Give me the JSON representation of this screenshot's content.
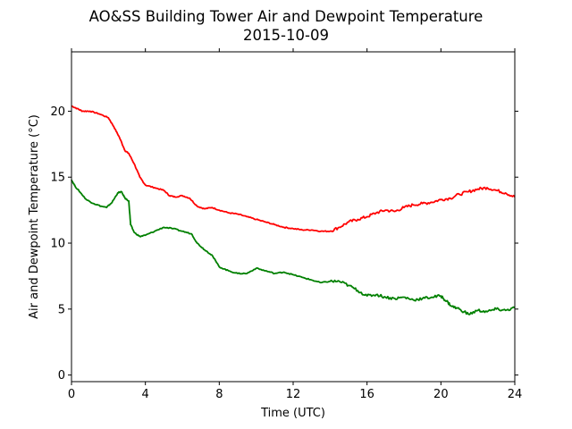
{
  "chart_data": {
    "type": "line",
    "title": "AO&SS Building Tower Air and Dewpoint Temperature",
    "subtitle": "2015-10-09",
    "xlabel": "Time (UTC)",
    "ylabel": "Air and Dewpoint Temperature (°C)",
    "xlim": [
      0,
      24
    ],
    "ylim": [
      -0.5,
      24.5
    ],
    "xticks": [
      0,
      4,
      8,
      12,
      16,
      20,
      24
    ],
    "yticks": [
      0,
      5,
      10,
      15,
      20
    ],
    "grid": false,
    "series": [
      {
        "key": "air",
        "color": "#ff0000",
        "x": [
          0,
          0.3,
          0.6,
          1.0,
          1.5,
          2.0,
          2.3,
          2.6,
          2.9,
          3.1,
          3.4,
          3.7,
          4.0,
          4.5,
          5.0,
          5.3,
          5.6,
          6.0,
          6.4,
          6.8,
          7.2,
          7.6,
          8.0,
          8.5,
          9.0,
          9.5,
          10.0,
          10.5,
          11.0,
          11.5,
          12.0,
          12.5,
          13.0,
          13.5,
          14.0,
          14.5,
          15.0,
          15.5,
          16.0,
          16.5,
          17.0,
          17.5,
          18.0,
          18.5,
          19.0,
          19.5,
          20.0,
          20.5,
          21.0,
          21.5,
          22.0,
          22.5,
          23.0,
          23.5,
          24.0
        ],
        "values": [
          20.4,
          20.2,
          20.0,
          20.0,
          19.8,
          19.5,
          18.8,
          18.0,
          17.0,
          16.8,
          16.0,
          15.0,
          14.4,
          14.2,
          14.0,
          13.6,
          13.5,
          13.6,
          13.4,
          12.8,
          12.6,
          12.7,
          12.5,
          12.3,
          12.2,
          12.0,
          11.8,
          11.6,
          11.4,
          11.2,
          11.1,
          11.0,
          11.0,
          10.9,
          10.9,
          11.2,
          11.6,
          11.8,
          12.0,
          12.3,
          12.5,
          12.4,
          12.7,
          12.9,
          13.0,
          13.1,
          13.3,
          13.4,
          13.7,
          13.9,
          14.1,
          14.2,
          14.0,
          13.8,
          13.5
        ]
      },
      {
        "key": "dewpoint",
        "color": "#008000",
        "x": [
          0,
          0.2,
          0.5,
          0.8,
          1.2,
          1.6,
          1.9,
          2.2,
          2.5,
          2.7,
          2.9,
          3.1,
          3.2,
          3.4,
          3.7,
          4.0,
          4.5,
          5.0,
          5.5,
          6.0,
          6.5,
          6.8,
          7.2,
          7.6,
          8.0,
          8.5,
          9.0,
          9.5,
          10.0,
          10.5,
          11.0,
          11.5,
          12.0,
          12.5,
          13.0,
          13.5,
          14.0,
          14.5,
          15.0,
          15.5,
          16.0,
          16.5,
          17.0,
          17.5,
          18.0,
          18.5,
          19.0,
          19.5,
          20.0,
          20.3,
          20.6,
          21.0,
          21.5,
          22.0,
          22.5,
          23.0,
          23.5,
          24.0
        ],
        "values": [
          14.8,
          14.3,
          13.8,
          13.3,
          13.0,
          12.8,
          12.7,
          13.1,
          13.8,
          13.9,
          13.4,
          13.2,
          11.4,
          10.8,
          10.5,
          10.6,
          10.9,
          11.2,
          11.1,
          10.9,
          10.7,
          10.0,
          9.5,
          9.1,
          8.2,
          7.9,
          7.7,
          7.7,
          8.1,
          7.9,
          7.7,
          7.8,
          7.6,
          7.4,
          7.2,
          7.0,
          7.1,
          7.1,
          6.8,
          6.4,
          6.0,
          6.1,
          5.9,
          5.8,
          5.9,
          5.7,
          5.8,
          5.9,
          6.0,
          5.6,
          5.2,
          5.0,
          4.6,
          4.9,
          4.8,
          5.0,
          4.9,
          5.1
        ]
      }
    ]
  }
}
